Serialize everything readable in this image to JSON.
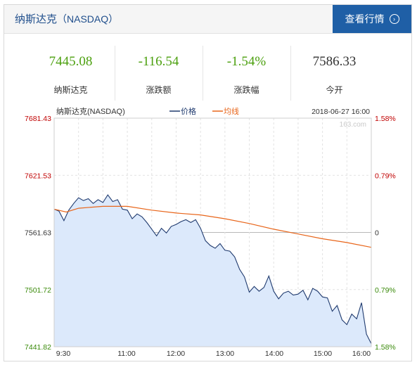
{
  "header": {
    "title": "纳斯达克",
    "title_sub": "（NASDAQ）",
    "view_button": "查看行情",
    "view_button_icon": "chevron-right-circle-icon"
  },
  "stats": [
    {
      "value": "7445.08",
      "label": "纳斯达克",
      "color": "#4ca00f"
    },
    {
      "value": "-116.54",
      "label": "涨跌额",
      "color": "#4ca00f"
    },
    {
      "value": "-1.54%",
      "label": "涨跌幅",
      "color": "#4ca00f"
    },
    {
      "value": "7586.33",
      "label": "今开",
      "color": "#333333"
    }
  ],
  "chart_data": {
    "type": "line",
    "title": "纳斯达克(NASDAQ)",
    "date": "2018-06-27 16:00",
    "watermark": "163.com",
    "legend": [
      {
        "name": "价格",
        "color": "#1f3a6e"
      },
      {
        "name": "均线",
        "color": "#e8651a"
      }
    ],
    "x_ticks": [
      "9:30",
      "11:00",
      "12:00",
      "13:00",
      "14:00",
      "15:00",
      "16:00"
    ],
    "y_left_ticks": [
      "7681.43",
      "7621.53",
      "7561.63",
      "7501.72",
      "7441.82"
    ],
    "y_right_ticks": [
      "1.58%",
      "0.79%",
      "0",
      "0.79%",
      "1.58%"
    ],
    "ylim": [
      7441.82,
      7681.43
    ],
    "prev_close": 7561.63,
    "time_range": [
      "9:30",
      "16:00"
    ],
    "series": [
      {
        "name": "价格",
        "points": [
          [
            "9:30",
            7586
          ],
          [
            "9:36",
            7584
          ],
          [
            "9:42",
            7574
          ],
          [
            "9:48",
            7585
          ],
          [
            "9:54",
            7592
          ],
          [
            "10:00",
            7598
          ],
          [
            "10:06",
            7595
          ],
          [
            "10:12",
            7597
          ],
          [
            "10:18",
            7592
          ],
          [
            "10:24",
            7596
          ],
          [
            "10:30",
            7593
          ],
          [
            "10:36",
            7601
          ],
          [
            "10:42",
            7594
          ],
          [
            "10:48",
            7596
          ],
          [
            "10:54",
            7586
          ],
          [
            "11:00",
            7585
          ],
          [
            "11:06",
            7576
          ],
          [
            "11:12",
            7581
          ],
          [
            "11:18",
            7578
          ],
          [
            "11:24",
            7572
          ],
          [
            "11:30",
            7565
          ],
          [
            "11:36",
            7558
          ],
          [
            "11:42",
            7566
          ],
          [
            "11:48",
            7561
          ],
          [
            "11:54",
            7568
          ],
          [
            "12:00",
            7570
          ],
          [
            "12:06",
            7573
          ],
          [
            "12:12",
            7575
          ],
          [
            "12:18",
            7572
          ],
          [
            "12:24",
            7575
          ],
          [
            "12:30",
            7566
          ],
          [
            "12:36",
            7553
          ],
          [
            "12:42",
            7548
          ],
          [
            "12:48",
            7545
          ],
          [
            "12:54",
            7550
          ],
          [
            "13:00",
            7543
          ],
          [
            "13:06",
            7542
          ],
          [
            "13:12",
            7536
          ],
          [
            "13:18",
            7523
          ],
          [
            "13:24",
            7515
          ],
          [
            "13:30",
            7499
          ],
          [
            "13:36",
            7505
          ],
          [
            "13:42",
            7500
          ],
          [
            "13:48",
            7504
          ],
          [
            "13:54",
            7516
          ],
          [
            "14:00",
            7500
          ],
          [
            "14:06",
            7492
          ],
          [
            "14:12",
            7498
          ],
          [
            "14:18",
            7500
          ],
          [
            "14:24",
            7496
          ],
          [
            "14:30",
            7497
          ],
          [
            "14:36",
            7501
          ],
          [
            "14:42",
            7491
          ],
          [
            "14:48",
            7503
          ],
          [
            "14:54",
            7500
          ],
          [
            "15:00",
            7494
          ],
          [
            "15:06",
            7493
          ],
          [
            "15:12",
            7479
          ],
          [
            "15:18",
            7485
          ],
          [
            "15:24",
            7470
          ],
          [
            "15:30",
            7465
          ],
          [
            "15:36",
            7476
          ],
          [
            "15:42",
            7471
          ],
          [
            "15:48",
            7488
          ],
          [
            "15:54",
            7455
          ],
          [
            "16:00",
            7445
          ]
        ]
      },
      {
        "name": "均线",
        "points": [
          [
            "9:30",
            7586
          ],
          [
            "9:45",
            7583
          ],
          [
            "10:00",
            7587
          ],
          [
            "10:30",
            7589
          ],
          [
            "11:00",
            7589
          ],
          [
            "11:30",
            7585
          ],
          [
            "12:00",
            7582
          ],
          [
            "12:30",
            7580
          ],
          [
            "13:00",
            7576
          ],
          [
            "13:30",
            7571
          ],
          [
            "14:00",
            7565
          ],
          [
            "14:30",
            7560
          ],
          [
            "15:00",
            7555
          ],
          [
            "15:30",
            7551
          ],
          [
            "16:00",
            7546
          ]
        ]
      }
    ]
  }
}
